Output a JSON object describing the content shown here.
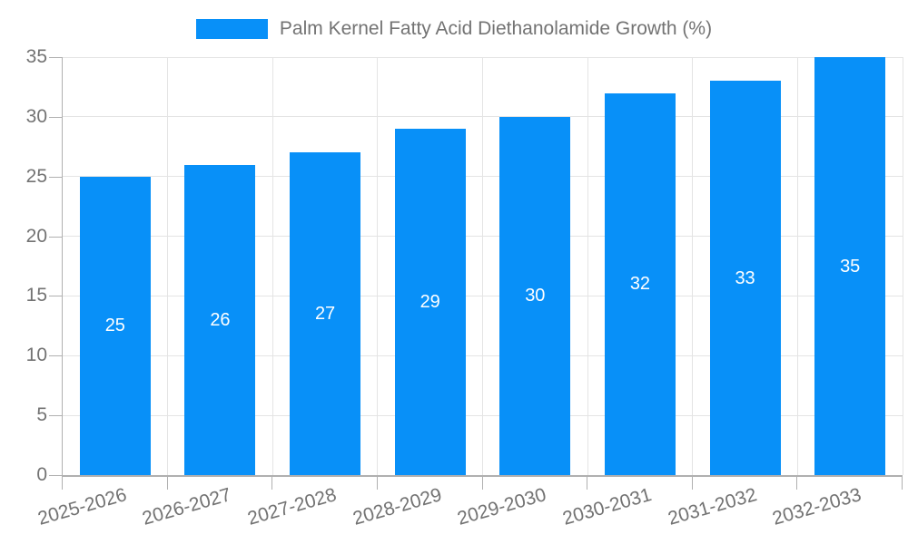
{
  "chart_data": {
    "type": "bar",
    "title": "",
    "xlabel": "",
    "ylabel": "",
    "legend": "Palm Kernel Fatty Acid Diethanolamide Growth (%)",
    "legend_position": "top-center",
    "categories": [
      "2025-2026",
      "2026-2027",
      "2027-2028",
      "2028-2029",
      "2029-2030",
      "2030-2031",
      "2031-2032",
      "2032-2033"
    ],
    "values": [
      25,
      26,
      27,
      29,
      30,
      32,
      33,
      35
    ],
    "ylim": [
      0,
      35
    ],
    "yticks": [
      0,
      5,
      10,
      15,
      20,
      25,
      30,
      35
    ],
    "grid": "on",
    "colors": {
      "bar": "#0890f8",
      "bar_value_label": "#ffffff",
      "axis_text": "#737373",
      "grid_line": "#e4e4e4",
      "axis_line": "#b0b0b0",
      "background": "#ffffff"
    }
  }
}
